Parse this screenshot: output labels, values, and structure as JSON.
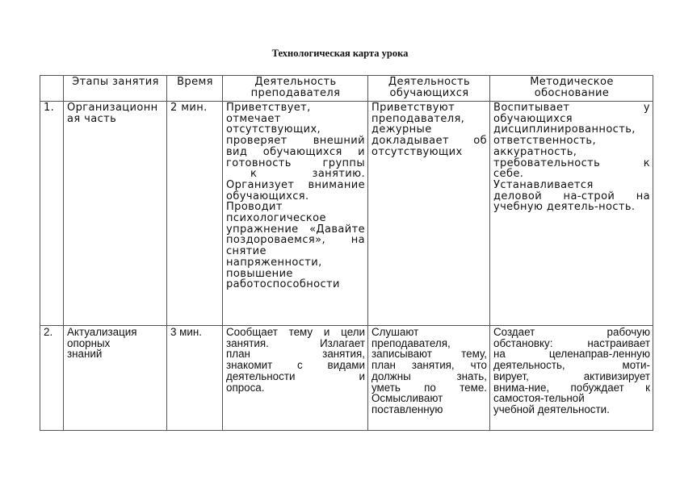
{
  "title": "Технологическая карта урока",
  "headers": [
    "",
    "Этапы занятия",
    "Время",
    "Деятельность преподавателя",
    "Деятельность обучающихся",
    "Методическое обоснование"
  ],
  "header_lines": [
    [
      ""
    ],
    [
      "Этапы занятия"
    ],
    [
      "Время"
    ],
    [
      "Деятельность",
      "преподавателя"
    ],
    [
      "Деятельность",
      "обучающихся"
    ],
    [
      "Методическое",
      "обоснование"
    ]
  ],
  "rows": [
    {
      "cells": [
        [
          "1."
        ],
        [
          "Организационн",
          "ая часть"
        ],
        [
          "2 мин."
        ],
        [
          "Приветствует,",
          "отмечает",
          "отсутствующих,",
          "проверяет внешний",
          "вид обучающихся и",
          "готовность группы",
          "к занятию.",
          "Организует внимание",
          "обучающихся.",
          "Проводит",
          "психологическое",
          "упражнение «Давайте",
          "поздороваемся», на",
          "снятие",
          "напряженности,",
          "повышение",
          "работоспособности"
        ],
        [
          "Приветствуют",
          "преподавателя,",
          "дежурные",
          "докладывает об",
          "отсутствующих"
        ],
        [
          "Воспитывает у",
          "обучающихся",
          "дисциплинированность,",
          "ответственность,",
          "аккуратность,",
          "требовательность к",
          "себе.",
          "Устанавливается",
          "деловой на-строй на",
          "учебную деятель-ность."
        ]
      ]
    },
    {
      "cells": [
        [
          "2."
        ],
        [
          "Актуализация",
          "опорных",
          "знаний"
        ],
        [
          "3 мин."
        ],
        [
          "Сообщает тему и цели",
          "занятия. Излагает",
          "план занятия,",
          "знакомит с видами",
          "деятельности и",
          "опроса."
        ],
        [
          "Слушают",
          "преподавателя,",
          "записывают тему,",
          "план занятия, что",
          "должны знать,",
          "уметь по теме.",
          "Осмысливают",
          "поставленную"
        ],
        [
          "Создает рабочую",
          "обстановку: настраивает",
          "на целенаправ-ленную",
          "деятельность, моти-",
          "вирует, активизирует",
          "внима-ние, побуждает к",
          "самостоя-тельной",
          "учебной деятельности."
        ]
      ]
    }
  ]
}
